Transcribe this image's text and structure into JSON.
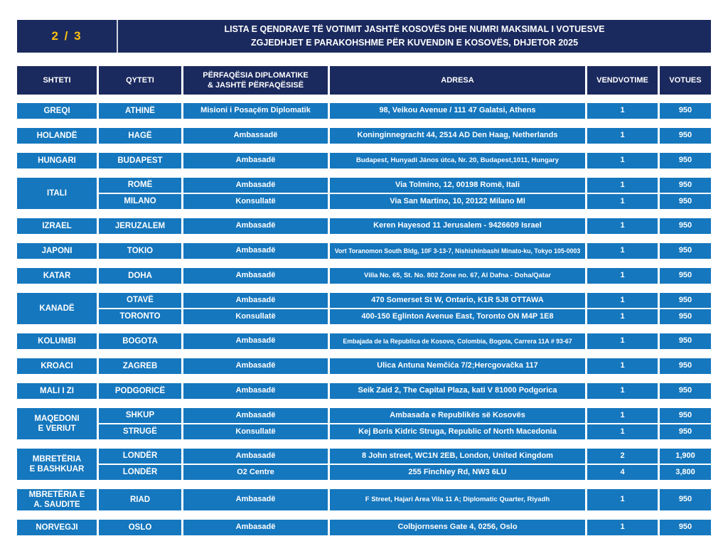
{
  "page": {
    "page_indicator": "2 / 3",
    "title_line1": "LISTA E QENDRAVE TË VOTIMIT JASHTË KOSOVËS DHE NUMRI MAKSIMAL I VOTUESVE",
    "title_line2": "ZGJEDHJET E PARAKOHSHME PËR KUVENDIN E KOSOVËS, DHJETOR 2025"
  },
  "colors": {
    "navy": "#1b2a5e",
    "row_blue": "#1577be",
    "accent_yellow": "#ffc20d",
    "text_white": "#ffffff"
  },
  "table": {
    "headers": [
      "SHTETI",
      "QYTETI",
      "PËRFAQËSIA DIPLOMATIKE\n& JASHTË PËRFAQËSISË",
      "ADRESA",
      "VENDVOTIME",
      "VOTUES"
    ],
    "groups": [
      {
        "country": "GREQI",
        "rows": [
          {
            "city": "ATHINË",
            "mission": "Misioni i Posaçëm Diplomatik",
            "address": "98, Veikou Avenue / 111 47 Galatsi, Athens",
            "stations": "1",
            "voters": "950"
          }
        ]
      },
      {
        "country": "HOLANDË",
        "rows": [
          {
            "city": "HAGË",
            "mission": "Ambassadë",
            "address": "Koninginnegracht 44, 2514 AD Den Haag, Netherlands",
            "stations": "1",
            "voters": "950"
          }
        ]
      },
      {
        "country": "HUNGARI",
        "rows": [
          {
            "city": "BUDAPEST",
            "mission": "Ambasadë",
            "address": "Budapest, Hunyadi János útca, Nr. 20, Budapest,1011, Hungary",
            "stations": "1",
            "voters": "950"
          }
        ]
      },
      {
        "country": "ITALI",
        "rows": [
          {
            "city": "ROMË",
            "mission": "Ambasadë",
            "address": "Via Tolmino, 12, 00198 Romë, Itali",
            "stations": "1",
            "voters": "950"
          },
          {
            "city": "MILANO",
            "mission": "Konsullatë",
            "address": "Via San Martino, 10, 20122 Milano MI",
            "stations": "1",
            "voters": "950"
          }
        ]
      },
      {
        "country": "IZRAEL",
        "rows": [
          {
            "city": "JERUZALEM",
            "mission": "Ambasadë",
            "address": "Keren Hayesod 11 Jerusalem - 9426609 Israel",
            "stations": "1",
            "voters": "950"
          }
        ]
      },
      {
        "country": "JAPONI",
        "rows": [
          {
            "city": "TOKIO",
            "mission": "Ambasadë",
            "address": "Vort Toranomon South Bldg, 10F 3-13-7, Nishishinbashi Minato-ku, Tokyo 105-0003",
            "stations": "1",
            "voters": "950"
          }
        ]
      },
      {
        "country": "KATAR",
        "rows": [
          {
            "city": "DOHA",
            "mission": "Ambasadë",
            "address": "Villa No. 65, St. No. 802 Zone no. 67, Al Dafna - Doha/Qatar",
            "stations": "1",
            "voters": "950"
          }
        ]
      },
      {
        "country": "KANADË",
        "rows": [
          {
            "city": "OTAVË",
            "mission": "Ambasadë",
            "address": "470 Somerset St W, Ontario, K1R 5J8 OTTAWA",
            "stations": "1",
            "voters": "950"
          },
          {
            "city": "TORONTO",
            "mission": "Konsullatë",
            "address": "400-150 Eglinton Avenue East, Toronto ON M4P 1E8",
            "stations": "1",
            "voters": "950"
          }
        ]
      },
      {
        "country": "KOLUMBI",
        "rows": [
          {
            "city": "BOGOTA",
            "mission": "Ambasadë",
            "address": "Embajada de la Republica de Kosovo, Colombia, Bogota, Carrera 11A # 93-67",
            "stations": "1",
            "voters": "950"
          }
        ]
      },
      {
        "country": "KROACI",
        "rows": [
          {
            "city": "ZAGREB",
            "mission": "Ambasadë",
            "address": "Ulica Antuna Nemčića 7/2;Hercgovačka 117",
            "stations": "1",
            "voters": "950"
          }
        ]
      },
      {
        "country": "MALI I ZI",
        "rows": [
          {
            "city": "PODGORICË",
            "mission": "Ambasadë",
            "address": "Seik Zaid 2, The Capital Plaza, kati V 81000 Podgorica",
            "stations": "1",
            "voters": "950"
          }
        ]
      },
      {
        "country": "MAQEDONI\nE VERIUT",
        "rows": [
          {
            "city": "SHKUP",
            "mission": "Ambasadë",
            "address": "Ambasada e Republikës së Kosovës",
            "stations": "1",
            "voters": "950"
          },
          {
            "city": "STRUGË",
            "mission": "Konsullatë",
            "address": "Kej Boris Kidric Struga, Republic of North Macedonia",
            "stations": "1",
            "voters": "950"
          }
        ]
      },
      {
        "country": "MBRETËRIA\nE BASHKUAR",
        "rows": [
          {
            "city": "LONDËR",
            "mission": "Ambasadë",
            "address": "8 John street, WC1N 2EB, London, United Kingdom",
            "stations": "2",
            "voters": "1,900"
          },
          {
            "city": "LONDËR",
            "mission": "O2 Centre",
            "address": "255 Finchley Rd, NW3 6LU",
            "stations": "4",
            "voters": "3,800"
          }
        ]
      },
      {
        "country": "MBRETËRIA E\nA. SAUDITE",
        "rows": [
          {
            "city": "RIAD",
            "mission": "Ambasadë",
            "address": "F Street, Hajari Area Vila 11 A; Diplomatic Quarter, Riyadh",
            "stations": "1",
            "voters": "950"
          }
        ]
      },
      {
        "country": "NORVEGJI",
        "rows": [
          {
            "city": "OSLO",
            "mission": "Ambasadë",
            "address": "Colbjornsens Gate 4, 0256, Oslo",
            "stations": "1",
            "voters": "950"
          }
        ]
      }
    ]
  }
}
